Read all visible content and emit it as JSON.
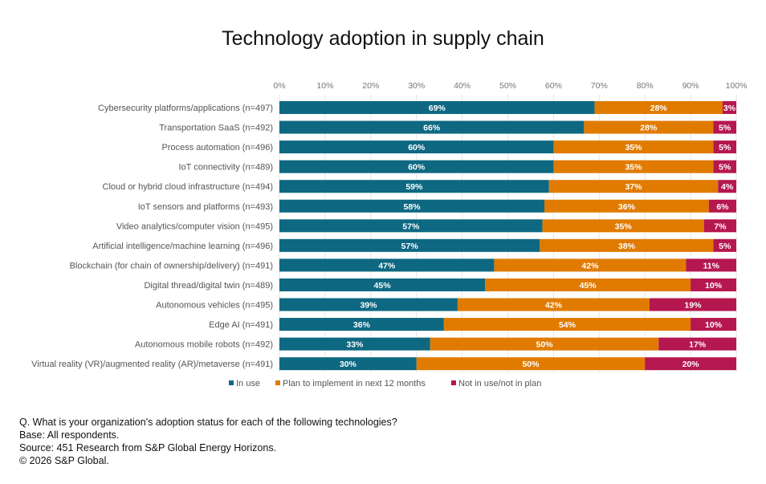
{
  "chart_data": {
    "type": "bar",
    "orientation": "horizontal",
    "stacked": true,
    "title": "Technology adoption in supply chain",
    "xlabel": "",
    "ylabel": "",
    "xlim": [
      0,
      100
    ],
    "x_ticks": [
      "0%",
      "10%",
      "20%",
      "30%",
      "40%",
      "50%",
      "60%",
      "70%",
      "80%",
      "90%",
      "100%"
    ],
    "grid": true,
    "legend_position": "bottom",
    "categories": [
      "Cybersecurity platforms/applications (n=497)",
      "Transportation SaaS (n=492)",
      "Process automation (n=496)",
      "IoT connectivity (n=489)",
      "Cloud or hybrid cloud infrastructure (n=494)",
      "IoT sensors and platforms (n=493)",
      "Video analytics/computer vision (n=495)",
      "Artificial intelligence/machine learning (n=496)",
      "Blockchain (for chain of ownership/delivery) (n=491)",
      "Digital thread/digital twin (n=489)",
      "Autonomous vehicles (n=495)",
      "Edge AI (n=491)",
      "Autonomous mobile robots (n=492)",
      "Virtual reality (VR)/augmented reality (AR)/metaverse (n=491)"
    ],
    "series": [
      {
        "name": "In use",
        "color": "#0e6882",
        "values": [
          69,
          66,
          60,
          60,
          59,
          58,
          57,
          57,
          47,
          45,
          39,
          36,
          33,
          30
        ]
      },
      {
        "name": "Plan to implement in next 12 months",
        "color": "#e07b00",
        "values": [
          28,
          28,
          35,
          35,
          37,
          36,
          35,
          38,
          42,
          45,
          42,
          54,
          50,
          50
        ]
      },
      {
        "name": "Not in use/not in plan",
        "color": "#b5174f",
        "values": [
          3,
          5,
          5,
          5,
          4,
          6,
          7,
          5,
          11,
          10,
          19,
          10,
          17,
          20
        ]
      }
    ]
  },
  "footnotes": {
    "question": "Q. What is your organization's adoption status for each of the following technologies?",
    "base": "Base:  All respondents.",
    "source": "Source: 451 Research from S&P Global Energy Horizons.",
    "copyright": "© 2026 S&P Global."
  }
}
